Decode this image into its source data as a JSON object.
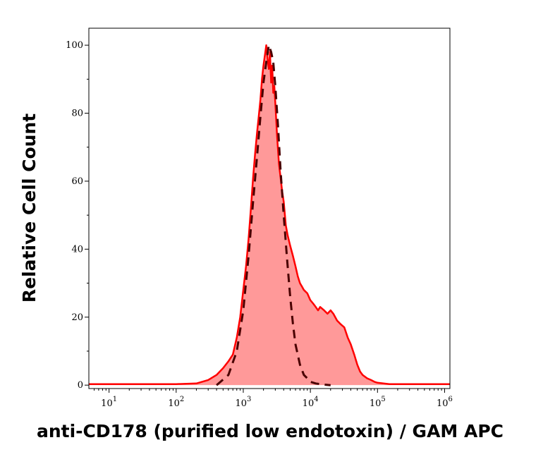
{
  "chart_data": {
    "type": "area",
    "xlabel": "anti-CD178 (purified low endotoxin) / GAM APC",
    "ylabel": "Relative Cell Count",
    "x_scale": "log",
    "xlim": [
      5,
      1200000
    ],
    "ylim": [
      -1,
      105
    ],
    "y_ticks": [
      0,
      20,
      40,
      60,
      80,
      100
    ],
    "x_ticks": [
      {
        "value": 10,
        "base": "10",
        "exp": "1"
      },
      {
        "value": 100,
        "base": "10",
        "exp": "2"
      },
      {
        "value": 1000,
        "base": "10",
        "exp": "3"
      },
      {
        "value": 10000,
        "base": "10",
        "exp": "4"
      },
      {
        "value": 100000,
        "base": "10",
        "exp": "5"
      },
      {
        "value": 1000000,
        "base": "10",
        "exp": "6"
      }
    ],
    "colors": {
      "sample_line": "#ff0000",
      "sample_fill": "#ff9999",
      "control_line": "#4a0000"
    },
    "series": [
      {
        "style": "filled-solid",
        "x": [
          5,
          100,
          200,
          300,
          400,
          500,
          600,
          700,
          800,
          900,
          1000,
          1100,
          1200,
          1300,
          1400,
          1500,
          1600,
          1700,
          1800,
          1900,
          2000,
          2100,
          2200,
          2300,
          2400,
          2500,
          2600,
          2700,
          2800,
          2900,
          3000,
          3200,
          3400,
          3600,
          3800,
          4000,
          4300,
          4600,
          5000,
          5500,
          6000,
          6500,
          7000,
          7500,
          8000,
          9000,
          10000,
          11000,
          12000,
          13000,
          14000,
          16000,
          18000,
          20000,
          22000,
          25000,
          28000,
          32000,
          36000,
          40000,
          45000,
          50000,
          55000,
          60000,
          70000,
          80000,
          90000,
          100000,
          150000,
          300000,
          1200000
        ],
        "y": [
          0.3,
          0.3,
          0.5,
          1.5,
          3,
          5,
          7,
          9,
          14,
          20,
          28,
          35,
          43,
          52,
          61,
          68,
          74,
          79,
          84,
          90,
          94,
          97,
          100,
          96,
          93,
          98,
          89,
          94,
          86,
          88,
          83,
          73,
          65,
          61,
          57,
          54,
          47,
          44,
          41,
          38,
          35,
          32,
          30,
          29,
          28,
          27,
          25,
          24,
          23,
          22,
          23,
          22,
          21,
          22,
          21,
          19,
          18,
          17,
          14,
          12,
          9,
          6,
          4,
          3,
          2,
          1.5,
          1,
          0.7,
          0.3,
          0.3,
          0.3
        ]
      },
      {
        "style": "dashed",
        "x": [
          400,
          600,
          800,
          1000,
          1200,
          1400,
          1600,
          1800,
          2000,
          2200,
          2400,
          2600,
          2800,
          3000,
          3300,
          3600,
          4000,
          4500,
          5000,
          5500,
          6000,
          7000,
          8000,
          9000,
          10000,
          12000,
          15000,
          20000
        ],
        "y": [
          0,
          3,
          10,
          22,
          38,
          54,
          67,
          79,
          89,
          95,
          100,
          98,
          95,
          88,
          76,
          63,
          50,
          37,
          26,
          18,
          12,
          6,
          3,
          2,
          1,
          0.5,
          0.2,
          0
        ]
      }
    ]
  }
}
